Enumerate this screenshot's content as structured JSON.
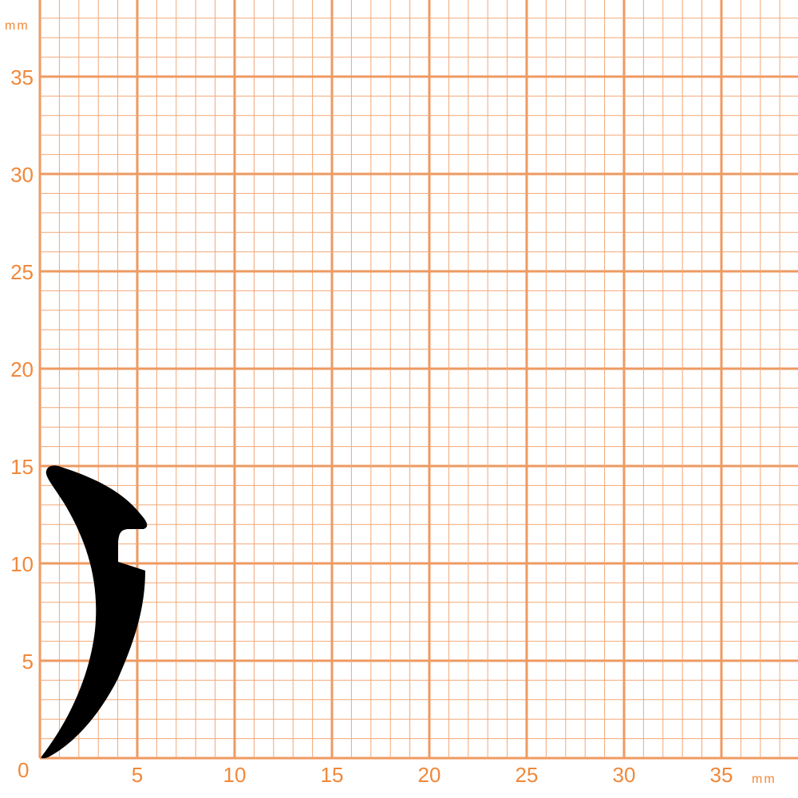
{
  "units": {
    "y_unit": "mm",
    "x_unit": "mm"
  },
  "axes": {
    "origin_label": "0",
    "x_ticks": [
      "5",
      "10",
      "15",
      "20",
      "25",
      "30",
      "35"
    ],
    "y_ticks": [
      "5",
      "10",
      "15",
      "20",
      "25",
      "30",
      "35"
    ],
    "x_range_mm": [
      0,
      39
    ],
    "y_range_mm": [
      0,
      39
    ],
    "minor_grid_mm": 1,
    "major_grid_mm": 5
  },
  "colors": {
    "grid": "#f2a877",
    "major_grid": "#ee9a62",
    "label": "#f0883a",
    "profile": "#000000"
  },
  "profile": {
    "name": "seal-profile",
    "fill": "black"
  }
}
